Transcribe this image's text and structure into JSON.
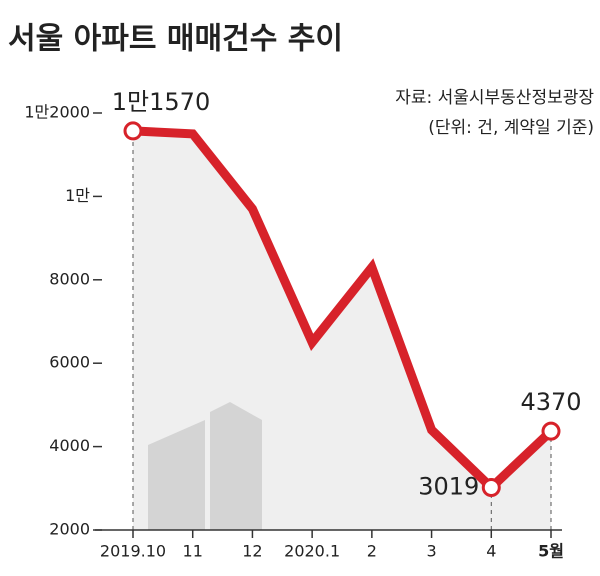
{
  "chart_data": {
    "type": "line",
    "title": "서울 아파트 매매건수 추이",
    "source": "자료: 서울시부동산정보광장",
    "unit_note": "(단위: 건, 계약일 기준)",
    "categories": [
      "2019.10",
      "11",
      "12",
      "2020.1",
      "2",
      "3",
      "4",
      "5월"
    ],
    "values": [
      11570,
      11500,
      9700,
      6500,
      8300,
      4400,
      3019,
      4370
    ],
    "value_labels": [
      "1만1570",
      null,
      null,
      null,
      null,
      null,
      "3019",
      "4370"
    ],
    "color": "#d7222a",
    "ylim": [
      2000,
      12000
    ],
    "yticks": [
      2000,
      4000,
      6000,
      8000,
      {
        "value": 10000,
        "label": "1만"
      },
      {
        "value": 12000,
        "label": "1만2000"
      }
    ]
  }
}
